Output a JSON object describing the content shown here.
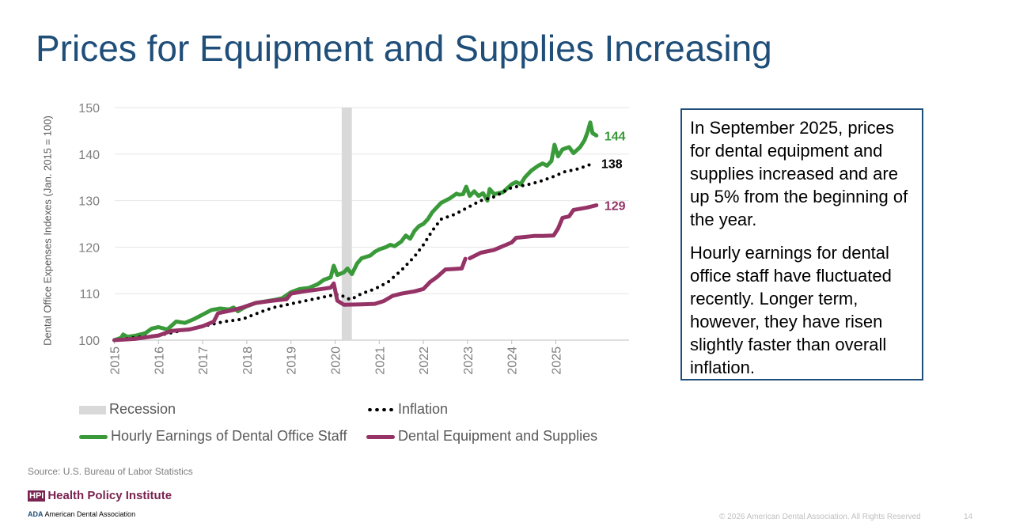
{
  "slide": {
    "title": "Prices for Equipment and Supplies Increasing",
    "source": "Source: U.S. Bureau of Labor Statistics",
    "logo_hpi_mark": "HPI",
    "logo_hpi_text": "Health Policy Institute",
    "logo_ada_mark": "ADA",
    "logo_ada_text": "American Dental Association",
    "copyright": "© 2026 American Dental Association. All Rights Reserved",
    "page_number": "14"
  },
  "textbox": {
    "paragraph1": "In September 2025, prices for dental equipment and supplies increased and are up 5% from the beginning of the year.",
    "paragraph2": "Hourly earnings for dental office staff have fluctuated recently. Longer term, however, they have risen slightly faster than overall inflation."
  },
  "colors": {
    "hourly": "#3a9a3a",
    "inflation": "#000000",
    "equipment": "#953266",
    "recession": "#d9d9d9",
    "title": "#1f4e79"
  },
  "chart_data": {
    "type": "line",
    "ylabel": "Dental Office Expenses Indexes (Jan. 2015 = 100)",
    "ylim": [
      100,
      150
    ],
    "yticks": [
      "100",
      "110",
      "120",
      "130",
      "140",
      "150"
    ],
    "xlim": [
      2015,
      2026
    ],
    "xticks": [
      "2015",
      "2016",
      "2017",
      "2018",
      "2019",
      "2020",
      "2021",
      "2022",
      "2023",
      "2024",
      "2025"
    ],
    "grid": true,
    "legend_position": "bottom",
    "recession": {
      "name": "Recession",
      "start": 2020.15,
      "end": 2020.38
    },
    "series": [
      {
        "name": "Hourly Earnings of Dental Office Staff",
        "key": "hourly",
        "style": "solid",
        "end_label": "144",
        "points": [
          [
            2015.0,
            100
          ],
          [
            2015.15,
            100.5
          ],
          [
            2015.2,
            101.2
          ],
          [
            2015.3,
            100.7
          ],
          [
            2015.5,
            101
          ],
          [
            2015.7,
            101.5
          ],
          [
            2015.85,
            102.5
          ],
          [
            2016.0,
            102.8
          ],
          [
            2016.2,
            102.3
          ],
          [
            2016.4,
            104
          ],
          [
            2016.6,
            103.7
          ],
          [
            2016.8,
            104.5
          ],
          [
            2017.0,
            105.5
          ],
          [
            2017.2,
            106.5
          ],
          [
            2017.4,
            106.8
          ],
          [
            2017.6,
            106.6
          ],
          [
            2017.7,
            107
          ],
          [
            2017.8,
            106.2
          ],
          [
            2017.9,
            106.8
          ],
          [
            2018.0,
            107.3
          ],
          [
            2018.2,
            108
          ],
          [
            2018.4,
            108.3
          ],
          [
            2018.6,
            108.6
          ],
          [
            2018.8,
            109
          ],
          [
            2019.0,
            110.3
          ],
          [
            2019.2,
            111
          ],
          [
            2019.4,
            111.2
          ],
          [
            2019.6,
            112
          ],
          [
            2019.75,
            113
          ],
          [
            2019.9,
            113.5
          ],
          [
            2019.97,
            116
          ],
          [
            2020.05,
            114
          ],
          [
            2020.2,
            114.6
          ],
          [
            2020.28,
            115.4
          ],
          [
            2020.38,
            114.2
          ],
          [
            2020.5,
            116.5
          ],
          [
            2020.6,
            117.6
          ],
          [
            2020.8,
            118.2
          ],
          [
            2020.9,
            119
          ],
          [
            2021.0,
            119.5
          ],
          [
            2021.15,
            120
          ],
          [
            2021.25,
            120.5
          ],
          [
            2021.35,
            120.2
          ],
          [
            2021.5,
            121.2
          ],
          [
            2021.6,
            122.5
          ],
          [
            2021.7,
            121.8
          ],
          [
            2021.8,
            123.5
          ],
          [
            2021.9,
            124.5
          ],
          [
            2022.0,
            125
          ],
          [
            2022.1,
            126
          ],
          [
            2022.2,
            127.5
          ],
          [
            2022.3,
            128.5
          ],
          [
            2022.4,
            129.5
          ],
          [
            2022.6,
            130.5
          ],
          [
            2022.75,
            131.5
          ],
          [
            2022.8,
            131.3
          ],
          [
            2022.9,
            131.4
          ],
          [
            2022.97,
            133
          ],
          [
            2023.05,
            131
          ],
          [
            2023.15,
            132
          ],
          [
            2023.25,
            131
          ],
          [
            2023.35,
            131.6
          ],
          [
            2023.45,
            130
          ],
          [
            2023.5,
            132.5
          ],
          [
            2023.6,
            131.4
          ],
          [
            2023.8,
            131.8
          ],
          [
            2024.0,
            133.5
          ],
          [
            2024.1,
            134
          ],
          [
            2024.2,
            133.5
          ],
          [
            2024.3,
            135
          ],
          [
            2024.45,
            136.5
          ],
          [
            2024.6,
            137.5
          ],
          [
            2024.7,
            138
          ],
          [
            2024.8,
            137.5
          ],
          [
            2024.9,
            138.5
          ],
          [
            2024.97,
            142
          ],
          [
            2025.05,
            139.5
          ],
          [
            2025.15,
            141
          ],
          [
            2025.3,
            141.5
          ],
          [
            2025.4,
            140.2
          ],
          [
            2025.55,
            141.5
          ],
          [
            2025.65,
            143
          ],
          [
            2025.72,
            144.8
          ],
          [
            2025.78,
            146.8
          ],
          [
            2025.83,
            144.5
          ],
          [
            2025.92,
            144
          ]
        ]
      },
      {
        "name": "Inflation",
        "key": "inflation",
        "style": "dotted",
        "end_label": "138",
        "points": [
          [
            2015.0,
            100
          ],
          [
            2015.5,
            100.6
          ],
          [
            2016.0,
            101
          ],
          [
            2016.5,
            102
          ],
          [
            2017.0,
            103
          ],
          [
            2017.5,
            104
          ],
          [
            2017.9,
            104.5
          ],
          [
            2018.3,
            106
          ],
          [
            2018.6,
            107
          ],
          [
            2019.0,
            107.8
          ],
          [
            2019.5,
            108.8
          ],
          [
            2019.9,
            109.6
          ],
          [
            2020.1,
            109.8
          ],
          [
            2020.35,
            108.7
          ],
          [
            2020.6,
            110
          ],
          [
            2020.9,
            111
          ],
          [
            2021.2,
            112.5
          ],
          [
            2021.5,
            115
          ],
          [
            2021.8,
            118
          ],
          [
            2022.0,
            120.5
          ],
          [
            2022.2,
            123.5
          ],
          [
            2022.4,
            126
          ],
          [
            2022.7,
            127
          ],
          [
            2023.0,
            128.5
          ],
          [
            2023.3,
            130
          ],
          [
            2023.6,
            130.8
          ],
          [
            2024.0,
            132.8
          ],
          [
            2024.3,
            133.3
          ],
          [
            2024.6,
            134
          ],
          [
            2024.9,
            135
          ],
          [
            2025.2,
            136.2
          ],
          [
            2025.5,
            136.8
          ],
          [
            2025.7,
            137.5
          ],
          [
            2025.85,
            138
          ]
        ]
      },
      {
        "name": "Dental Equipment and Supplies",
        "key": "equipment",
        "style": "solid",
        "end_label": "129",
        "points": [
          [
            2015.0,
            100
          ],
          [
            2015.5,
            100.3
          ],
          [
            2016.0,
            101
          ],
          [
            2016.3,
            102
          ],
          [
            2016.7,
            102.3
          ],
          [
            2017.0,
            103
          ],
          [
            2017.25,
            104
          ],
          [
            2017.35,
            105.8
          ],
          [
            2017.7,
            106.5
          ],
          [
            2017.9,
            107
          ],
          [
            2018.2,
            108
          ],
          [
            2018.6,
            108.5
          ],
          [
            2018.9,
            108.8
          ],
          [
            2019.0,
            110
          ],
          [
            2019.3,
            110.5
          ],
          [
            2019.7,
            111
          ],
          [
            2019.9,
            111.3
          ],
          [
            2019.97,
            112.2
          ],
          [
            2020.05,
            108.5
          ],
          [
            2020.2,
            107.6
          ],
          [
            2020.6,
            107.7
          ],
          [
            2020.9,
            107.8
          ],
          [
            2021.1,
            108.4
          ],
          [
            2021.3,
            109.5
          ],
          [
            2021.5,
            110
          ],
          [
            2021.8,
            110.5
          ],
          [
            2022.0,
            111
          ],
          [
            2022.15,
            112.5
          ],
          [
            2022.3,
            113.5
          ],
          [
            2022.5,
            115.2
          ],
          [
            2022.7,
            115.3
          ],
          [
            2022.87,
            115.4
          ],
          [
            2022.95,
            117.5
          ],
          [
            2023.0,
            null
          ],
          [
            2023.05,
            117.6
          ],
          [
            2023.3,
            118.8
          ],
          [
            2023.6,
            119.4
          ],
          [
            2023.8,
            120.2
          ],
          [
            2024.0,
            121
          ],
          [
            2024.1,
            122
          ],
          [
            2024.3,
            122.2
          ],
          [
            2024.5,
            122.4
          ],
          [
            2024.7,
            122.4
          ],
          [
            2024.95,
            122.5
          ],
          [
            2025.05,
            124
          ],
          [
            2025.15,
            126.3
          ],
          [
            2025.3,
            126.6
          ],
          [
            2025.4,
            128
          ],
          [
            2025.7,
            128.5
          ],
          [
            2025.92,
            129
          ]
        ]
      }
    ]
  }
}
